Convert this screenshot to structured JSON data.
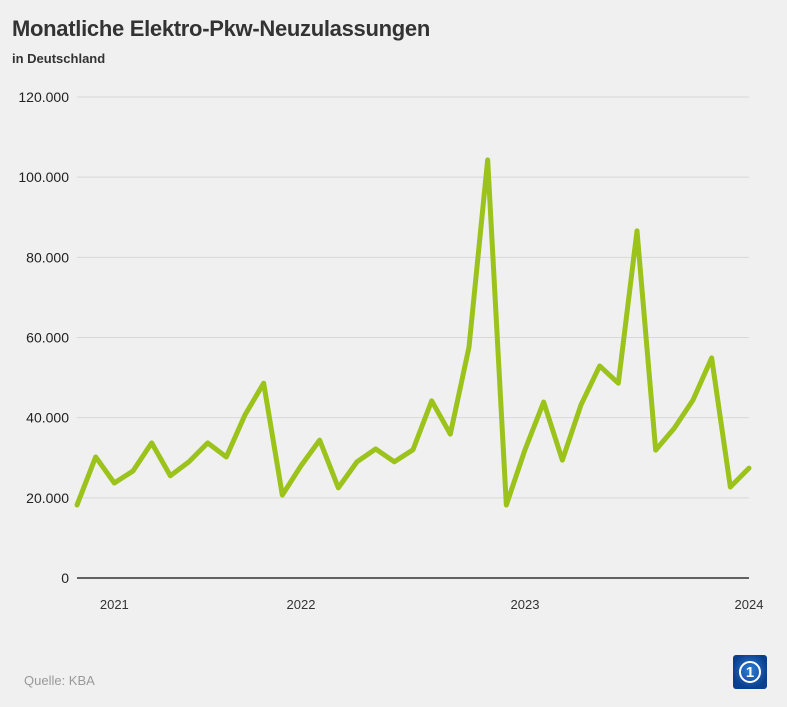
{
  "chart_data": {
    "type": "line",
    "title": "Monatliche Elektro-Pkw-Neuzulassungen",
    "subtitle": "in Deutschland",
    "xlabel": "",
    "ylabel": "",
    "ylim": [
      0,
      120000
    ],
    "yticks": [
      0,
      20000,
      40000,
      60000,
      80000,
      100000,
      120000
    ],
    "ytick_labels": [
      "0",
      "20.000",
      "40.000",
      "60.000",
      "80.000",
      "100.000",
      "120.000"
    ],
    "xtick_labels": [
      {
        "label": "2021",
        "index": 2
      },
      {
        "label": "2022",
        "index": 12
      },
      {
        "label": "2023",
        "index": 24
      },
      {
        "label": "2024",
        "index": 36
      }
    ],
    "grid": true,
    "color": "#9bc31c",
    "series": [
      {
        "name": "Elektro-Pkw-Neuzulassungen",
        "values": [
          18200,
          30200,
          23700,
          26700,
          33700,
          25500,
          29000,
          33700,
          30200,
          40700,
          48600,
          20700,
          28000,
          34400,
          22500,
          29000,
          32200,
          29000,
          32000,
          44200,
          35900,
          57600,
          104300,
          18200,
          32000,
          43900,
          29400,
          43200,
          52900,
          48600,
          86600,
          31900,
          37400,
          44400,
          54900,
          22700,
          27400
        ]
      }
    ]
  },
  "footer": {
    "source": "Quelle: KBA",
    "logo_text": "1"
  }
}
